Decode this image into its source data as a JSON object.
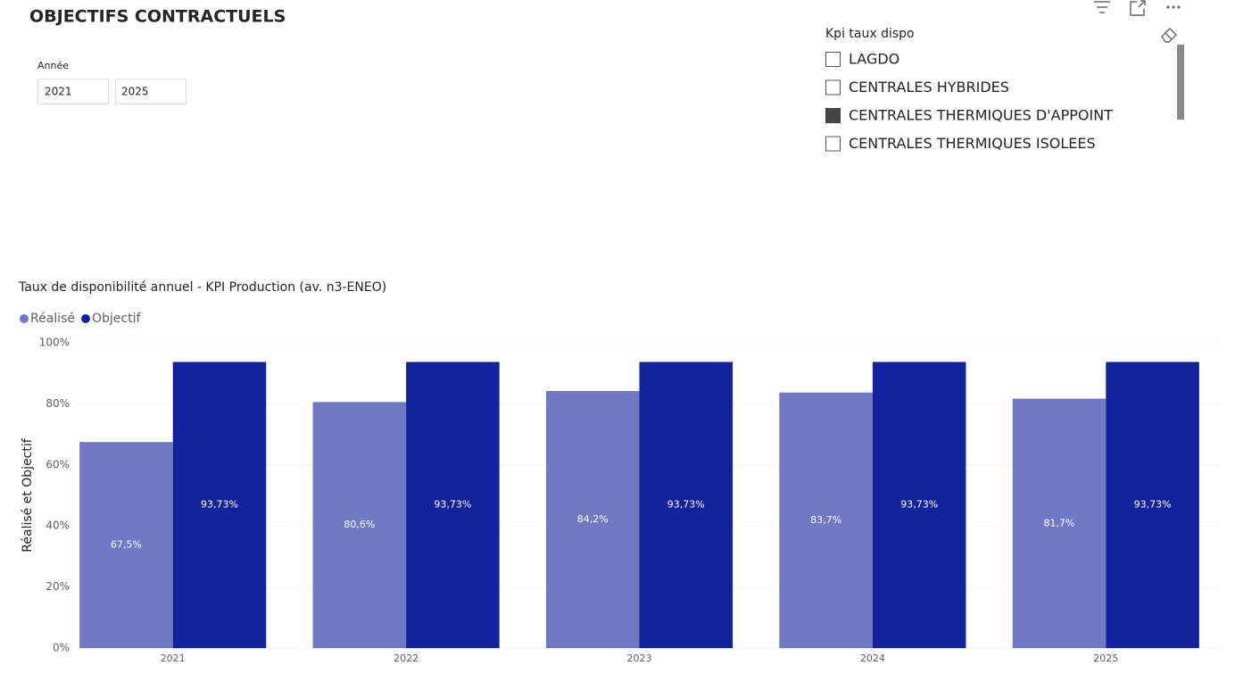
{
  "header": {
    "title": "OBJECTIFS CONTRACTUELS"
  },
  "year_slicer": {
    "label": "Année",
    "from": "2021",
    "to": "2025"
  },
  "kpi_slicer": {
    "title": "Kpi taux dispo",
    "items": [
      {
        "label": "LAGDO",
        "checked": false
      },
      {
        "label": "CENTRALES HYBRIDES",
        "checked": false
      },
      {
        "label": "CENTRALES THERMIQUES D'APPOINT",
        "checked": true
      },
      {
        "label": "CENTRALES THERMIQUES ISOLEES",
        "checked": false
      }
    ]
  },
  "chart_data": {
    "type": "bar",
    "title": "Taux de disponibilité annuel - KPI Production (av. n3-ENEO)",
    "y_label": "Réalisé et Objectif",
    "categories": [
      "2021",
      "2022",
      "2023",
      "2024",
      "2025"
    ],
    "series": [
      {
        "name": "Réalisé",
        "color": "#7079c6",
        "values": [
          67.5,
          80.6,
          84.2,
          83.7,
          81.7
        ],
        "value_labels": [
          "67,5%",
          "80,6%",
          "84,2%",
          "83,7%",
          "81,7%"
        ]
      },
      {
        "name": "Objectif",
        "color": "#12239e",
        "values": [
          93.73,
          93.73,
          93.73,
          93.73,
          93.73
        ],
        "value_labels": [
          "93,73%",
          "93,73%",
          "93,73%",
          "93,73%",
          "93,73%"
        ]
      }
    ],
    "ylim": [
      0,
      100
    ],
    "yticks": [
      {
        "value": 0,
        "label": "0%"
      },
      {
        "value": 20,
        "label": "20%"
      },
      {
        "value": 40,
        "label": "40%"
      },
      {
        "value": 60,
        "label": "60%"
      },
      {
        "value": 80,
        "label": "80%"
      },
      {
        "value": 100,
        "label": "100%"
      }
    ],
    "grid": true,
    "legend": "top-left"
  }
}
